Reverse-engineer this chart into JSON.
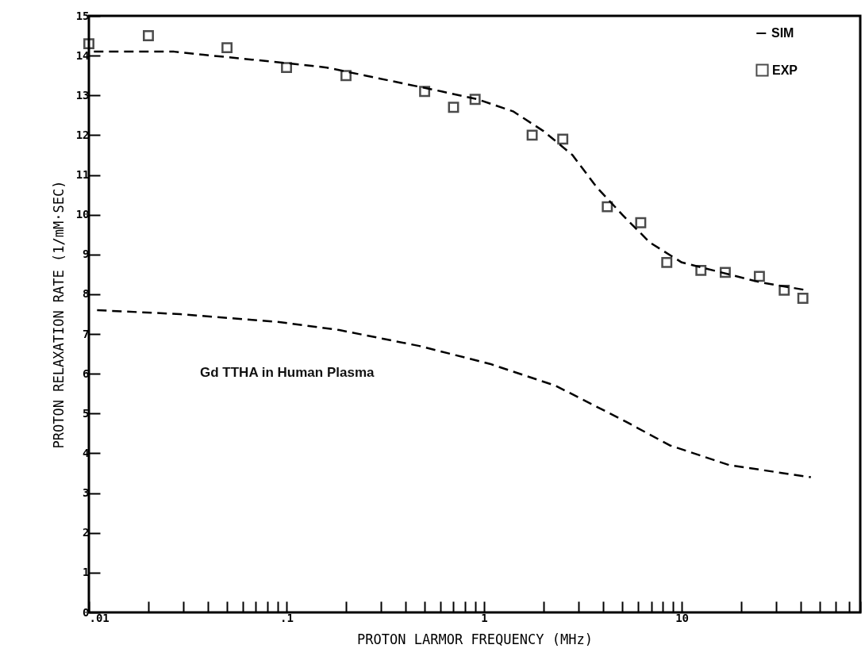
{
  "chart_data": {
    "type": "line",
    "xlabel": "PROTON LARMOR FREQUENCY  (MHz)",
    "ylabel": "PROTON RELAXATION RATE  (1/mM·SEC)",
    "log": "x",
    "xlim": [
      0.01,
      80
    ],
    "ylim": [
      0,
      15
    ],
    "xticks": [
      {
        "value": 0.01,
        "label": ".01"
      },
      {
        "value": 0.02,
        "label": null
      },
      {
        "value": 0.03,
        "label": null
      },
      {
        "value": 0.04,
        "label": null
      },
      {
        "value": 0.05,
        "label": null
      },
      {
        "value": 0.06,
        "label": null
      },
      {
        "value": 0.07,
        "label": null
      },
      {
        "value": 0.08,
        "label": null
      },
      {
        "value": 0.09,
        "label": null
      },
      {
        "value": 0.1,
        "label": ".1"
      },
      {
        "value": 0.2,
        "label": null
      },
      {
        "value": 0.3,
        "label": null
      },
      {
        "value": 0.4,
        "label": null
      },
      {
        "value": 0.5,
        "label": null
      },
      {
        "value": 0.6,
        "label": null
      },
      {
        "value": 0.7,
        "label": null
      },
      {
        "value": 0.8,
        "label": null
      },
      {
        "value": 0.9,
        "label": null
      },
      1,
      {
        "value": 2,
        "label": null
      },
      {
        "value": 3,
        "label": null
      },
      {
        "value": 4,
        "label": null
      },
      {
        "value": 5,
        "label": null
      },
      {
        "value": 6,
        "label": null
      },
      {
        "value": 7,
        "label": null
      },
      {
        "value": 8,
        "label": null
      },
      {
        "value": 9,
        "label": null
      },
      10,
      {
        "value": 20,
        "label": null
      },
      {
        "value": 30,
        "label": null
      },
      {
        "value": 40,
        "label": null
      },
      {
        "value": 50,
        "label": null
      },
      {
        "value": 60,
        "label": null
      },
      {
        "value": 70,
        "label": null
      },
      {
        "value": 80,
        "label": null
      }
    ],
    "yticks": [
      0,
      1,
      2,
      3,
      4,
      5,
      6,
      7,
      8,
      9,
      10,
      11,
      12,
      13,
      14,
      15
    ],
    "grid": false,
    "legend": "top right",
    "series": [
      {
        "name": "SIM",
        "line_style": "dashed",
        "color": "#000000",
        "x": [
          0.0106,
          0.027,
          0.042,
          0.067,
          0.106,
          0.16,
          0.25,
          0.39,
          0.61,
          0.93,
          1.4,
          2.0,
          2.8,
          3.7,
          5.0,
          6.9,
          10,
          25,
          43
        ],
        "values": [
          14.1,
          14.1,
          14.0,
          13.9,
          13.8,
          13.7,
          13.5,
          13.3,
          13.1,
          12.9,
          12.6,
          12.1,
          11.5,
          10.7,
          10.0,
          9.3,
          8.8,
          8.3,
          8.1
        ]
      },
      {
        "line_style": "dashed",
        "color": "#000000",
        "x": [
          0.011,
          0.029,
          0.092,
          0.185,
          0.47,
          1.07,
          2.3,
          5.2,
          8.7,
          17.5,
          45
        ],
        "values": [
          7.6,
          7.5,
          7.3,
          7.1,
          6.7,
          6.25,
          5.7,
          4.8,
          4.2,
          3.7,
          3.4
        ]
      },
      {
        "name": "EXP",
        "type": "scatter",
        "marker": "square",
        "color": "#000000",
        "x": [
          0.01,
          0.02,
          0.05,
          0.1,
          0.2,
          0.5,
          0.7,
          0.9,
          1.75,
          2.5,
          4.2,
          6.2,
          8.4,
          12.5,
          16.6,
          24.7,
          33,
          41
        ],
        "values": [
          14.3,
          14.5,
          14.2,
          13.7,
          13.5,
          13.1,
          12.7,
          12.9,
          12.0,
          11.9,
          10.2,
          9.8,
          8.8,
          8.6,
          8.55,
          8.45,
          8.1,
          7.9
        ]
      }
    ],
    "annotations": [
      "Gd TTHA in Human Plasma"
    ]
  }
}
